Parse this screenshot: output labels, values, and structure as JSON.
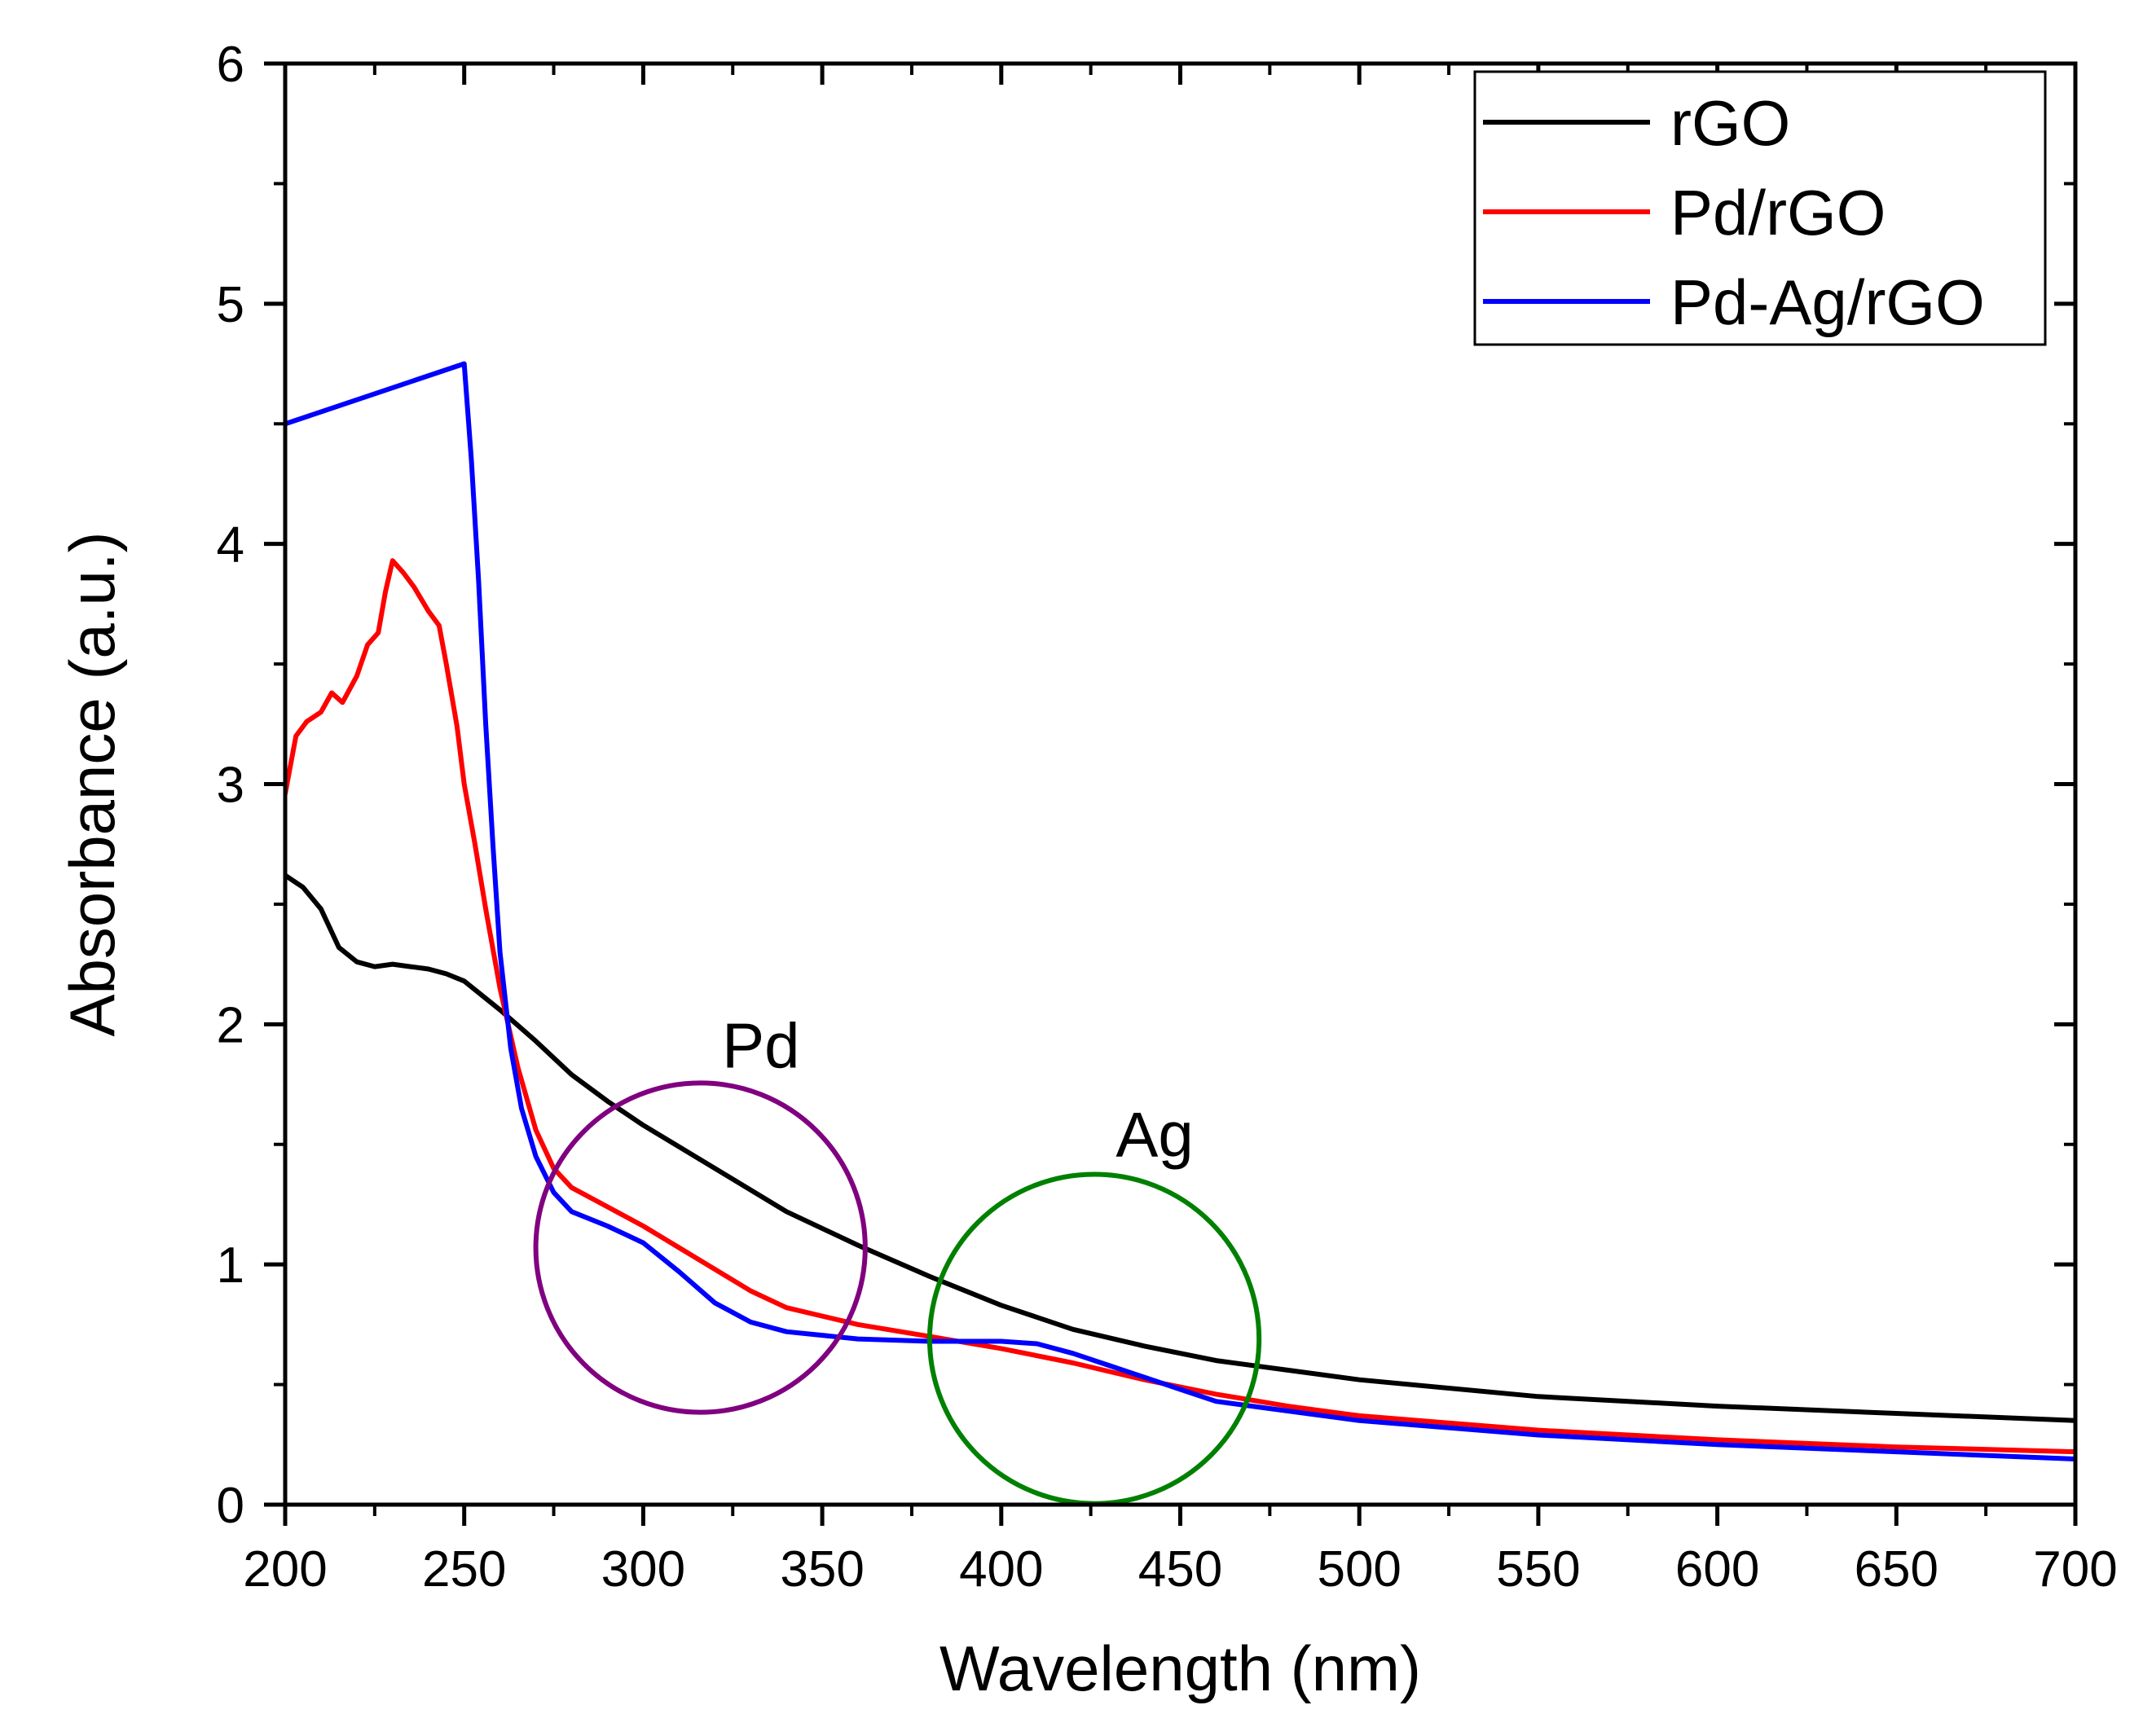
{
  "chart_data": {
    "type": "line",
    "title": "",
    "xlabel": "Wavelength (nm)",
    "ylabel": "Absorbance (a.u.)",
    "xlim": [
      200,
      700
    ],
    "ylim": [
      0,
      6
    ],
    "xticks": [
      200,
      250,
      300,
      350,
      400,
      450,
      500,
      550,
      600,
      650,
      700
    ],
    "yticks": [
      0,
      1,
      2,
      3,
      4,
      5,
      6
    ],
    "xtick_labels": [
      "200",
      "250",
      "300",
      "350",
      "400",
      "450",
      "500",
      "550",
      "600",
      "650",
      "700"
    ],
    "ytick_labels": [
      "0",
      "1",
      "2",
      "3",
      "4",
      "5",
      "6"
    ],
    "grid": false,
    "legend_position": "top-right",
    "series": [
      {
        "name": "rGO",
        "color": "#000000",
        "x": [
          200,
          205,
          210,
          215,
          220,
          225,
          230,
          235,
          240,
          245,
          250,
          255,
          260,
          270,
          280,
          290,
          300,
          320,
          340,
          360,
          380,
          400,
          420,
          440,
          460,
          480,
          500,
          550,
          600,
          650,
          700
        ],
        "y": [
          2.62,
          2.57,
          2.48,
          2.32,
          2.26,
          2.24,
          2.25,
          2.24,
          2.23,
          2.21,
          2.18,
          2.12,
          2.06,
          1.93,
          1.79,
          1.68,
          1.58,
          1.4,
          1.22,
          1.08,
          0.95,
          0.83,
          0.73,
          0.66,
          0.6,
          0.56,
          0.52,
          0.45,
          0.41,
          0.38,
          0.35
        ]
      },
      {
        "name": "Pd/rGO",
        "color": "#ff0000",
        "x": [
          200,
          203,
          206,
          210,
          213,
          216,
          220,
          223,
          226,
          228,
          230,
          233,
          236,
          240,
          243,
          245,
          248,
          250,
          253,
          256,
          260,
          265,
          270,
          275,
          280,
          290,
          300,
          310,
          320,
          330,
          340,
          360,
          380,
          400,
          420,
          440,
          460,
          480,
          500,
          550,
          600,
          650,
          700
        ],
        "y": [
          2.96,
          3.2,
          3.26,
          3.3,
          3.38,
          3.34,
          3.45,
          3.58,
          3.63,
          3.8,
          3.93,
          3.88,
          3.82,
          3.72,
          3.66,
          3.5,
          3.24,
          3.0,
          2.75,
          2.48,
          2.15,
          1.82,
          1.56,
          1.4,
          1.32,
          1.24,
          1.16,
          1.07,
          0.98,
          0.89,
          0.82,
          0.75,
          0.7,
          0.65,
          0.59,
          0.52,
          0.46,
          0.41,
          0.37,
          0.31,
          0.27,
          0.24,
          0.22
        ]
      },
      {
        "name": "Pd-Ag/rGO",
        "color": "#0000ff",
        "x": [
          200,
          250,
          252,
          254,
          256,
          258,
          260,
          263,
          266,
          270,
          275,
          280,
          290,
          300,
          310,
          320,
          330,
          340,
          360,
          380,
          400,
          410,
          420,
          430,
          440,
          450,
          460,
          480,
          500,
          550,
          600,
          650,
          700
        ],
        "y": [
          4.5,
          4.75,
          4.35,
          3.85,
          3.25,
          2.75,
          2.3,
          1.9,
          1.65,
          1.45,
          1.3,
          1.22,
          1.16,
          1.09,
          0.97,
          0.84,
          0.76,
          0.72,
          0.69,
          0.68,
          0.68,
          0.67,
          0.63,
          0.58,
          0.53,
          0.48,
          0.43,
          0.39,
          0.35,
          0.29,
          0.25,
          0.22,
          0.19
        ]
      }
    ],
    "annotations": [
      {
        "label": "Pd",
        "shape": "circle",
        "color": "#800080",
        "center": [
          316,
          1.07
        ],
        "radius_x": 46,
        "label_at": [
          322,
          1.82
        ]
      },
      {
        "label": "Ag",
        "shape": "circle",
        "color": "#008000",
        "center": [
          426,
          0.69
        ],
        "radius_x": 46,
        "label_at": [
          432,
          1.45
        ]
      }
    ]
  }
}
